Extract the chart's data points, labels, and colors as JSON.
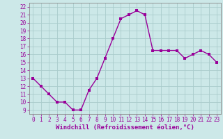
{
  "x": [
    0,
    1,
    2,
    3,
    4,
    5,
    6,
    7,
    8,
    9,
    10,
    11,
    12,
    13,
    14,
    15,
    16,
    17,
    18,
    19,
    20,
    21,
    22,
    23
  ],
  "y": [
    13,
    12,
    11,
    10,
    10,
    9,
    9,
    11.5,
    13,
    15.5,
    18,
    20.5,
    21,
    21.5,
    21,
    16.5,
    16.5,
    16.5,
    16.5,
    15.5,
    16,
    16.5,
    16,
    15
  ],
  "line_color": "#990099",
  "marker_color": "#990099",
  "bg_color": "#cce8e8",
  "plot_bg_color": "#cce8e8",
  "grid_color": "#aacccc",
  "xlabel": "Windchill (Refroidissement éolien,°C)",
  "xlabel_color": "#990099",
  "yticks": [
    9,
    10,
    11,
    12,
    13,
    14,
    15,
    16,
    17,
    18,
    19,
    20,
    21,
    22
  ],
  "xticks": [
    0,
    1,
    2,
    3,
    4,
    5,
    6,
    7,
    8,
    9,
    10,
    11,
    12,
    13,
    14,
    15,
    16,
    17,
    18,
    19,
    20,
    21,
    22,
    23
  ],
  "ylim": [
    8.5,
    22.5
  ],
  "xlim": [
    -0.5,
    23.5
  ],
  "tick_color": "#990099",
  "tick_fontsize": 5.5,
  "xlabel_fontsize": 6.5,
  "line_width": 1.0,
  "marker_size": 2.5,
  "spine_color": "#888888"
}
